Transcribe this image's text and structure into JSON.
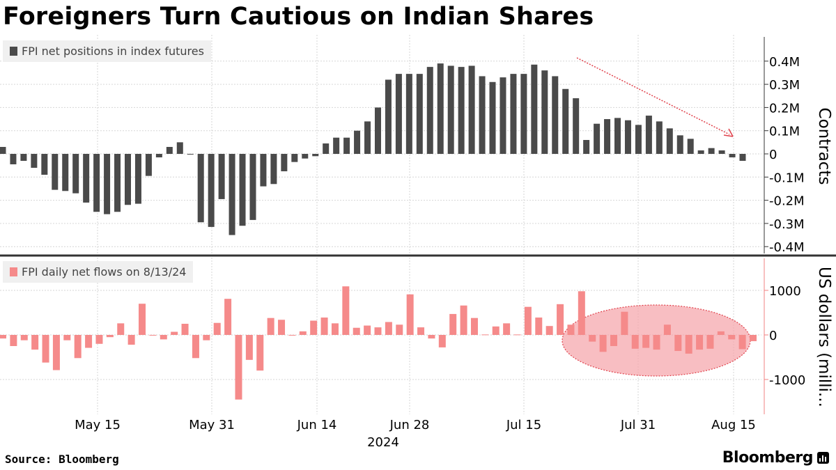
{
  "title": "Foreigners Turn Cautious on Indian Shares",
  "source": "Source: Bloomberg",
  "brand": "Bloomberg",
  "brand_icon": "bar-chart-icon",
  "colors": {
    "futures": "#4a4a4a",
    "flows": "#f58a8a",
    "ellipse": "#f5a3a8",
    "arrow": "#e0404a"
  },
  "chart_data": [
    {
      "type": "bar",
      "legend": "FPI net positions in index futures",
      "ylabel": "Contracts",
      "ylim": [
        -0.4,
        0.4
      ],
      "yticks": [
        "0.4M",
        "0.3M",
        "0.2M",
        "0.1M",
        "0",
        "-0.1M",
        "-0.2M",
        "-0.3M",
        "-0.4M"
      ],
      "ytick_values": [
        0.4,
        0.3,
        0.2,
        0.1,
        0,
        -0.1,
        -0.2,
        -0.3,
        -0.4
      ],
      "unit": "million contracts",
      "annotation": "downward trend arrow",
      "values": [
        0.03,
        -0.045,
        -0.03,
        -0.06,
        -0.09,
        -0.155,
        -0.16,
        -0.17,
        -0.21,
        -0.25,
        -0.26,
        -0.25,
        -0.22,
        -0.215,
        -0.095,
        -0.015,
        0.03,
        0.05,
        0.0,
        -0.295,
        -0.315,
        -0.195,
        -0.35,
        -0.31,
        -0.285,
        -0.14,
        -0.13,
        -0.075,
        -0.035,
        -0.02,
        -0.01,
        0.045,
        0.07,
        0.07,
        0.1,
        0.14,
        0.2,
        0.32,
        0.345,
        0.345,
        0.345,
        0.375,
        0.39,
        0.38,
        0.375,
        0.38,
        0.335,
        0.31,
        0.33,
        0.345,
        0.345,
        0.385,
        0.36,
        0.335,
        0.28,
        0.24,
        0.06,
        0.13,
        0.15,
        0.155,
        0.145,
        0.125,
        0.165,
        0.14,
        0.11,
        0.08,
        0.065,
        0.015,
        0.025,
        0.015,
        -0.015,
        -0.03
      ]
    },
    {
      "type": "bar",
      "legend": "FPI daily net flows on 8/13/24",
      "ylabel": "US dollars (milli...",
      "ylim": [
        -1700,
        1700
      ],
      "yticks": [
        "1000",
        "0",
        "-1000"
      ],
      "ytick_values": [
        1000,
        0,
        -1000
      ],
      "annotation": "shaded ellipse highlighting recent outflows",
      "values": [
        -80,
        -250,
        -120,
        -330,
        -620,
        -790,
        -120,
        -520,
        -290,
        -200,
        -50,
        260,
        -220,
        700,
        -5,
        -100,
        70,
        250,
        -520,
        -120,
        270,
        810,
        -1450,
        -560,
        -800,
        380,
        340,
        -10,
        80,
        320,
        390,
        260,
        1090,
        160,
        210,
        170,
        290,
        230,
        910,
        170,
        -80,
        -280,
        470,
        660,
        380,
        10,
        190,
        260,
        10,
        630,
        390,
        200,
        690,
        230,
        980,
        -150,
        -380,
        -250,
        520,
        -310,
        -290,
        -330,
        230,
        -360,
        -420,
        -330,
        -310,
        80,
        -100,
        -320,
        -140
      ]
    }
  ],
  "x_axis": {
    "labels": [
      "May 15",
      "May 31",
      "Jun 14",
      "Jun 28",
      "Jul 15",
      "Jul 31",
      "Aug 15"
    ],
    "year": "2024"
  }
}
